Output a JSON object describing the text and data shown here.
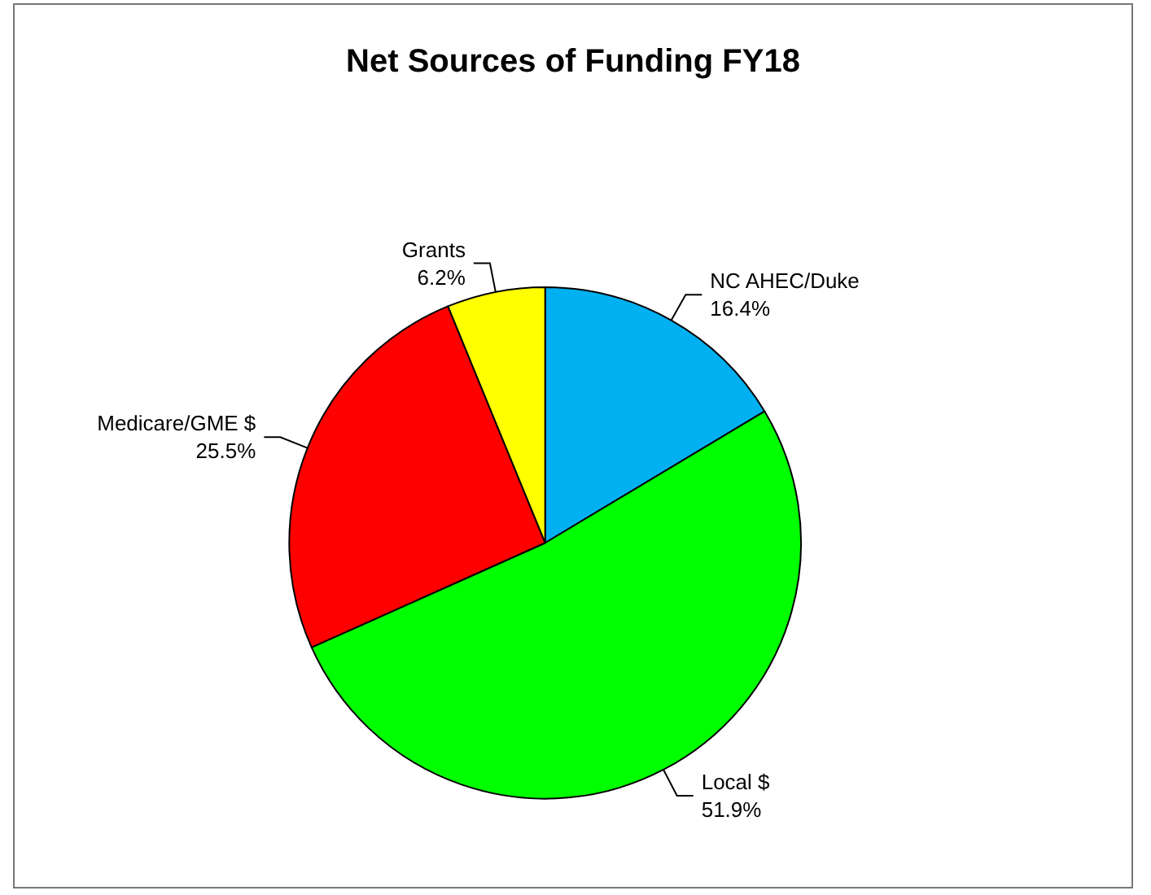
{
  "chart_data": {
    "type": "pie",
    "title": "Net Sources of Funding FY18",
    "categories": [
      "NC AHEC/Duke",
      "Local $",
      "Medicare/GME $",
      "Grants"
    ],
    "values": [
      16.4,
      51.9,
      25.5,
      6.2
    ],
    "colors": [
      "#00b0f0",
      "#00ff00",
      "#ff0000",
      "#ffff00"
    ],
    "value_labels": [
      "16.4%",
      "51.9%",
      "25.5%",
      "6.2%"
    ],
    "legend": false
  }
}
